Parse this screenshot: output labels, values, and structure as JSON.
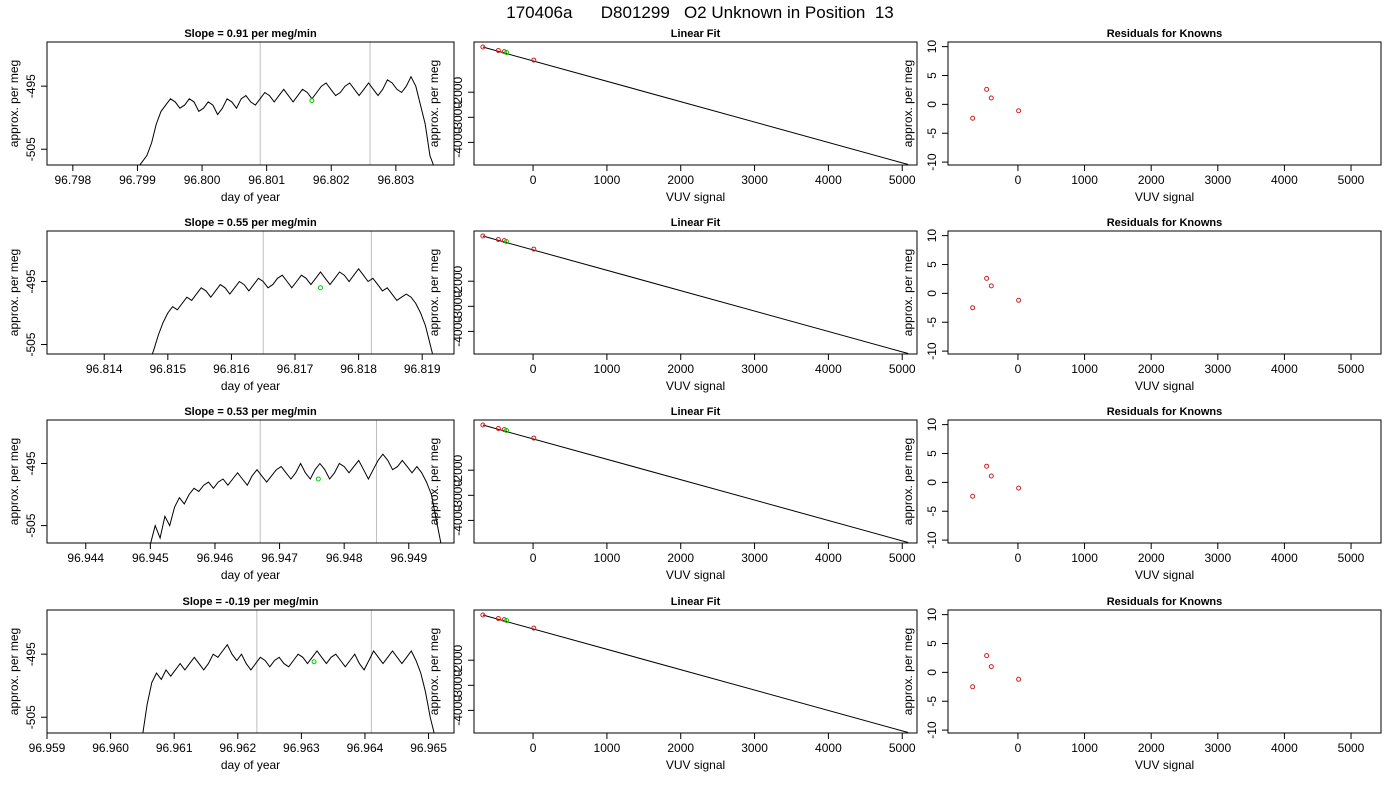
{
  "page_title": "170406a      D801299   O2 Unknown in Position  13",
  "chart_data": [
    {
      "type": "line",
      "title": "Slope =  0.91  per meg/min",
      "xlabel": "day of year",
      "ylabel": "approx. per meg",
      "xlim": [
        96.7976,
        96.8039
      ],
      "ylim": [
        -507.5,
        -488.0
      ],
      "xticks": [
        "96.798",
        "96.799",
        "96.800",
        "96.801",
        "96.802",
        "96.803"
      ],
      "yticks": [
        "-495",
        "-505"
      ],
      "vlines": [
        96.8009,
        96.8026
      ],
      "mark_point": {
        "x": 96.8017,
        "y": -497.3
      },
      "series": [
        {
          "x_start": 96.799,
          "x_end": 96.8036,
          "values": [
            -508,
            -507,
            -506,
            -504,
            -501,
            -499,
            -498,
            -497,
            -497.5,
            -498.5,
            -498,
            -497,
            -497.5,
            -499,
            -498.5,
            -497.5,
            -498,
            -499.5,
            -498.5,
            -497,
            -497.5,
            -498.5,
            -497,
            -496.5,
            -497.5,
            -498,
            -497,
            -496,
            -496.5,
            -497.5,
            -496.5,
            -495.5,
            -496.5,
            -497.5,
            -496.5,
            -495.5,
            -496,
            -497,
            -496,
            -495,
            -494.5,
            -495.5,
            -496.5,
            -496,
            -495,
            -494.5,
            -495.5,
            -496.5,
            -495.5,
            -494.5,
            -495.5,
            -496.5,
            -495.5,
            -494,
            -494.5,
            -495.5,
            -496,
            -495,
            -493.5,
            -495,
            -498,
            -501,
            -506,
            -508
          ]
        }
      ]
    },
    {
      "type": "scatter",
      "title": "Linear Fit",
      "xlabel": "VUV signal",
      "ylabel": "approx. per meg",
      "xlim": [
        -800,
        5200
      ],
      "ylim": [
        -4900,
        0
      ],
      "xticks": [
        "0",
        "1000",
        "2000",
        "3000",
        "4000",
        "5000"
      ],
      "yticks": [
        "-2000",
        "-3000",
        "-4000"
      ],
      "points": [
        {
          "x": -680,
          "y": -200
        },
        {
          "x": -470,
          "y": -340
        },
        {
          "x": -390,
          "y": -385
        },
        {
          "x": 10,
          "y": -720
        }
      ],
      "green_point": {
        "x": -360,
        "y": -420
      },
      "fit_line": {
        "x": [
          -680,
          5080
        ],
        "y": [
          -200,
          -4880
        ]
      }
    },
    {
      "type": "scatter",
      "title": "Residuals for Knowns",
      "xlabel": "VUV signal",
      "ylabel": "approx. per meg",
      "xlim": [
        -1050,
        5450
      ],
      "ylim": [
        -10.5,
        10.8
      ],
      "xticks": [
        "0",
        "1000",
        "2000",
        "3000",
        "4000",
        "5000"
      ],
      "yticks": [
        "10",
        "5",
        "0",
        "-5",
        "-10"
      ],
      "points": [
        {
          "x": -680,
          "y": -2.4
        },
        {
          "x": -470,
          "y": 2.6
        },
        {
          "x": -400,
          "y": 1.1
        },
        {
          "x": 10,
          "y": -1.1
        }
      ]
    },
    {
      "type": "line",
      "title": "Slope =  0.55  per meg/min",
      "xlabel": "day of year",
      "ylabel": "approx. per meg",
      "xlim": [
        96.8131,
        96.8195
      ],
      "ylim": [
        -506.5,
        -487.0
      ],
      "xticks": [
        "96.814",
        "96.815",
        "96.816",
        "96.817",
        "96.818",
        "96.819"
      ],
      "yticks": [
        "-495",
        "-505"
      ],
      "vlines": [
        96.8165,
        96.8182
      ],
      "mark_point": {
        "x": 96.8174,
        "y": -496.0
      },
      "series": [
        {
          "x_start": 96.8147,
          "x_end": 96.8192,
          "values": [
            -508,
            -506,
            -503.5,
            -501.5,
            -500,
            -499,
            -499.5,
            -498.5,
            -497.5,
            -498,
            -497,
            -496,
            -496.5,
            -497.5,
            -496.5,
            -495.5,
            -496,
            -497,
            -496,
            -495,
            -495.5,
            -496.5,
            -495.5,
            -494.5,
            -495,
            -496,
            -495.5,
            -494.5,
            -494,
            -495,
            -496,
            -495,
            -494,
            -494.5,
            -495.5,
            -494.5,
            -493.5,
            -494.5,
            -495.5,
            -494.5,
            -493.5,
            -494,
            -495,
            -494,
            -493,
            -494,
            -495,
            -494.5,
            -495.5,
            -496.5,
            -496,
            -497,
            -498,
            -497.5,
            -497,
            -497.5,
            -498.5,
            -500,
            -502,
            -505,
            -508
          ]
        }
      ]
    },
    {
      "type": "scatter",
      "title": "Linear Fit",
      "xlabel": "VUV signal",
      "ylabel": "approx. per meg",
      "xlim": [
        -800,
        5200
      ],
      "ylim": [
        -4900,
        0
      ],
      "xticks": [
        "0",
        "1000",
        "2000",
        "3000",
        "4000",
        "5000"
      ],
      "yticks": [
        "-2000",
        "-3000",
        "-4000"
      ],
      "points": [
        {
          "x": -680,
          "y": -200
        },
        {
          "x": -470,
          "y": -340
        },
        {
          "x": -390,
          "y": -385
        },
        {
          "x": 10,
          "y": -720
        }
      ],
      "green_point": {
        "x": -360,
        "y": -420
      },
      "fit_line": {
        "x": [
          -680,
          5080
        ],
        "y": [
          -200,
          -4880
        ]
      }
    },
    {
      "type": "scatter",
      "title": "Residuals for Knowns",
      "xlabel": "VUV signal",
      "ylabel": "approx. per meg",
      "xlim": [
        -1050,
        5450
      ],
      "ylim": [
        -10.5,
        10.8
      ],
      "xticks": [
        "0",
        "1000",
        "2000",
        "3000",
        "4000",
        "5000"
      ],
      "yticks": [
        "10",
        "5",
        "0",
        "-5",
        "-10"
      ],
      "points": [
        {
          "x": -680,
          "y": -2.5
        },
        {
          "x": -470,
          "y": 2.6
        },
        {
          "x": -400,
          "y": 1.3
        },
        {
          "x": 10,
          "y": -1.2
        }
      ]
    },
    {
      "type": "line",
      "title": "Slope =  0.53  per meg/min",
      "xlabel": "day of year",
      "ylabel": "approx. per meg",
      "xlim": [
        96.9434,
        96.9497
      ],
      "ylim": [
        -507.8,
        -488.0
      ],
      "xticks": [
        "96.944",
        "96.945",
        "96.946",
        "96.947",
        "96.948",
        "96.949"
      ],
      "yticks": [
        "-495",
        "-505"
      ],
      "vlines": [
        96.9467,
        96.9485
      ],
      "mark_point": {
        "x": 96.9476,
        "y": -497.5
      },
      "series": [
        {
          "x_start": 96.945,
          "x_end": 96.9495,
          "values": [
            -508,
            -505,
            -507,
            -503.5,
            -505,
            -502,
            -500.5,
            -501.5,
            -500,
            -499,
            -499.5,
            -498.5,
            -498,
            -499,
            -498,
            -497.5,
            -498.5,
            -497.5,
            -496.5,
            -497.5,
            -498.5,
            -497,
            -496,
            -497,
            -498,
            -497,
            -496,
            -495.5,
            -496.5,
            -497.5,
            -496.5,
            -495,
            -496.5,
            -497.5,
            -496,
            -495,
            -496,
            -497.5,
            -496.5,
            -495,
            -495.5,
            -496.5,
            -495.5,
            -494.5,
            -496,
            -497.5,
            -496,
            -494.5,
            -493.5,
            -494.5,
            -496,
            -495.5,
            -494.5,
            -495.5,
            -496.5,
            -495.5,
            -496.5,
            -498,
            -500,
            -504,
            -508
          ]
        }
      ]
    },
    {
      "type": "scatter",
      "title": "Linear Fit",
      "xlabel": "VUV signal",
      "ylabel": "approx. per meg",
      "xlim": [
        -800,
        5200
      ],
      "ylim": [
        -4900,
        0
      ],
      "xticks": [
        "0",
        "1000",
        "2000",
        "3000",
        "4000",
        "5000"
      ],
      "yticks": [
        "-2000",
        "-3000",
        "-4000"
      ],
      "points": [
        {
          "x": -680,
          "y": -200
        },
        {
          "x": -470,
          "y": -340
        },
        {
          "x": -390,
          "y": -385
        },
        {
          "x": 10,
          "y": -720
        }
      ],
      "green_point": {
        "x": -360,
        "y": -420
      },
      "fit_line": {
        "x": [
          -680,
          5080
        ],
        "y": [
          -200,
          -4880
        ]
      }
    },
    {
      "type": "scatter",
      "title": "Residuals for Knowns",
      "xlabel": "VUV signal",
      "ylabel": "approx. per meg",
      "xlim": [
        -1050,
        5450
      ],
      "ylim": [
        -10.5,
        10.8
      ],
      "xticks": [
        "0",
        "1000",
        "2000",
        "3000",
        "4000",
        "5000"
      ],
      "yticks": [
        "10",
        "5",
        "0",
        "-5",
        "-10"
      ],
      "points": [
        {
          "x": -680,
          "y": -2.4
        },
        {
          "x": -470,
          "y": 2.8
        },
        {
          "x": -400,
          "y": 1.1
        },
        {
          "x": 10,
          "y": -1.0
        }
      ]
    },
    {
      "type": "line",
      "title": "Slope =  -0.19  per meg/min",
      "xlabel": "day of year",
      "ylabel": "approx. per meg",
      "xlim": [
        96.959,
        96.9654
      ],
      "ylim": [
        -507.5,
        -488.0
      ],
      "xticks": [
        "96.959",
        "96.960",
        "96.961",
        "96.962",
        "96.963",
        "96.964",
        "96.965"
      ],
      "yticks": [
        "-495",
        "-505"
      ],
      "vlines": [
        96.9623,
        96.9641
      ],
      "mark_point": {
        "x": 96.9632,
        "y": -496.2
      },
      "series": [
        {
          "x_start": 96.9605,
          "x_end": 96.9651,
          "values": [
            -508,
            -503,
            -499.5,
            -498,
            -499,
            -497.5,
            -498.5,
            -497.5,
            -496.5,
            -497.5,
            -496.5,
            -495.5,
            -496.5,
            -497.5,
            -496.5,
            -495,
            -495.5,
            -494.5,
            -493.5,
            -495,
            -496,
            -495,
            -496.5,
            -497.5,
            -496.5,
            -495.5,
            -496,
            -497,
            -496,
            -495.5,
            -496.5,
            -497,
            -496,
            -495,
            -495.5,
            -496.5,
            -495.5,
            -494.5,
            -495.5,
            -496.5,
            -495.5,
            -495,
            -496,
            -497,
            -496,
            -495,
            -496.5,
            -497.5,
            -496,
            -494.5,
            -495.5,
            -496.5,
            -495.5,
            -494.5,
            -495.5,
            -496.5,
            -495.5,
            -494.5,
            -496,
            -498,
            -501,
            -505,
            -508
          ]
        }
      ]
    },
    {
      "type": "scatter",
      "title": "Linear Fit",
      "xlabel": "VUV signal",
      "ylabel": "approx. per meg",
      "xlim": [
        -800,
        5200
      ],
      "ylim": [
        -4900,
        0
      ],
      "xticks": [
        "0",
        "1000",
        "2000",
        "3000",
        "4000",
        "5000"
      ],
      "yticks": [
        "-2000",
        "-3000",
        "-4000"
      ],
      "points": [
        {
          "x": -680,
          "y": -200
        },
        {
          "x": -470,
          "y": -340
        },
        {
          "x": -390,
          "y": -385
        },
        {
          "x": 10,
          "y": -720
        }
      ],
      "green_point": {
        "x": -360,
        "y": -420
      },
      "fit_line": {
        "x": [
          -680,
          5080
        ],
        "y": [
          -200,
          -4880
        ]
      }
    },
    {
      "type": "scatter",
      "title": "Residuals for Knowns",
      "xlabel": "VUV signal",
      "ylabel": "approx. per meg",
      "xlim": [
        -1050,
        5450
      ],
      "ylim": [
        -10.5,
        10.8
      ],
      "xticks": [
        "0",
        "1000",
        "2000",
        "3000",
        "4000",
        "5000"
      ],
      "yticks": [
        "10",
        "5",
        "0",
        "-5",
        "-10"
      ],
      "points": [
        {
          "x": -680,
          "y": -2.5
        },
        {
          "x": -470,
          "y": 2.9
        },
        {
          "x": -400,
          "y": 1.0
        },
        {
          "x": 10,
          "y": -1.2
        }
      ]
    }
  ]
}
